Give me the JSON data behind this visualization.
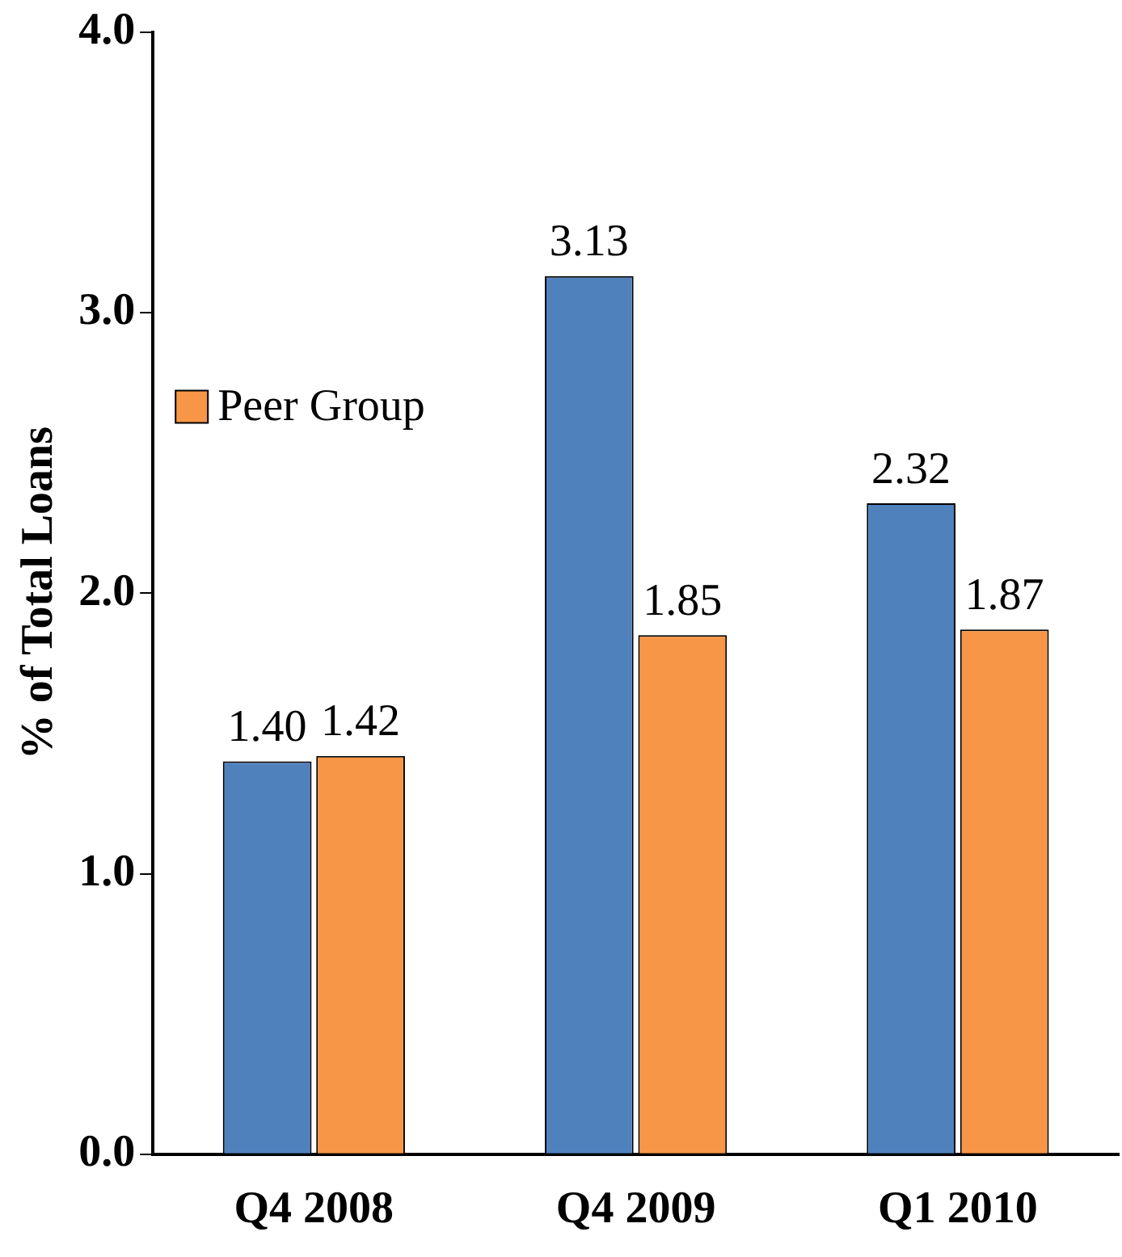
{
  "chart_data": {
    "type": "bar",
    "ylabel": "% of Total Loans",
    "categories": [
      "Q4 2008",
      "Q4 2009",
      "Q1 2010"
    ],
    "series": [
      {
        "color": "#4f81bd",
        "values": [
          1.4,
          3.13,
          2.32
        ],
        "value_labels": [
          "1.40",
          "3.13",
          "2.32"
        ]
      },
      {
        "name": "Peer Group",
        "color": "#f79646",
        "values": [
          1.42,
          1.85,
          1.87
        ],
        "value_labels": [
          "1.42",
          "1.85",
          "1.87"
        ]
      }
    ],
    "ylim": [
      0,
      4
    ],
    "yticks": [
      {
        "value": 0,
        "label": "0.0"
      },
      {
        "value": 1,
        "label": "1.0"
      },
      {
        "value": 2,
        "label": "2.0"
      },
      {
        "value": 3,
        "label": "3.0"
      },
      {
        "value": 4,
        "label": "4.0"
      }
    ],
    "grid": false,
    "legend": "top left"
  }
}
